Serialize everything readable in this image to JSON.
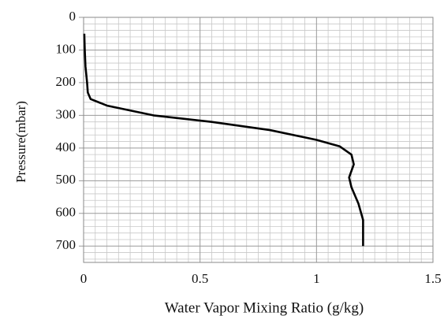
{
  "chart_data": {
    "type": "line",
    "xlabel": "Water Vapor Mixing Ratio (g/kg)",
    "ylabel": "Pressure(mbar)",
    "xlim": [
      0,
      1.5
    ],
    "xticks": [
      0,
      0.5,
      1,
      1.5
    ],
    "ylim": [
      750,
      0
    ],
    "yticks": [
      0,
      100,
      200,
      300,
      400,
      500,
      600,
      700
    ],
    "xminorticks": [
      0.05,
      0.1,
      0.15,
      0.2,
      0.25,
      0.3,
      0.35,
      0.4,
      0.45,
      0.55,
      0.6,
      0.65,
      0.7,
      0.75,
      0.8,
      0.85,
      0.9,
      0.95,
      1.05,
      1.1,
      1.15,
      1.2,
      1.25,
      1.3,
      1.35,
      1.4,
      1.45
    ],
    "yminorticks": [
      20,
      40,
      60,
      80,
      120,
      140,
      160,
      180,
      220,
      240,
      260,
      280,
      320,
      340,
      360,
      380,
      420,
      440,
      460,
      480,
      520,
      540,
      560,
      580,
      620,
      640,
      660,
      680,
      720,
      740
    ],
    "grid": true,
    "series": [
      {
        "color": "#000000",
        "x": [
          0.003,
          0.005,
          0.008,
          0.015,
          0.018,
          0.03,
          0.1,
          0.3,
          0.55,
          0.8,
          1.0,
          1.1,
          1.15,
          1.16,
          1.14,
          1.15,
          1.18,
          1.2,
          1.2,
          1.2
        ],
        "values": [
          50,
          100,
          150,
          200,
          230,
          250,
          270,
          300,
          320,
          345,
          375,
          395,
          420,
          450,
          490,
          520,
          570,
          620,
          660,
          700
        ]
      }
    ]
  }
}
